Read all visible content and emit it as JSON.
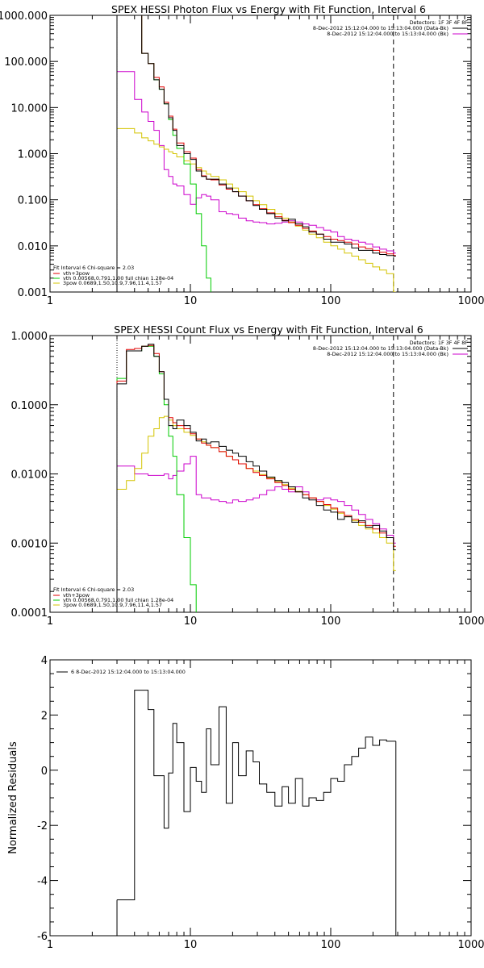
{
  "chart_data": [
    {
      "type": "line",
      "title": "SPEX HESSI Photon Flux vs Energy with Fit Function, Interval 6",
      "xlabel": "",
      "ylabel": "",
      "xscale": "log",
      "yscale": "log",
      "xlim": [
        1,
        1000
      ],
      "ylim": [
        0.001,
        1000
      ],
      "xticks": [
        1,
        10,
        100,
        1000
      ],
      "xtick_labels": [
        "1",
        "10",
        "100",
        "1000"
      ],
      "yticks": [
        0.001,
        0.01,
        0.1,
        1,
        10,
        100,
        1000
      ],
      "ytick_labels": [
        "0.001",
        "0.010",
        "0.100",
        "1.000",
        "10.000",
        "100.000",
        "1000.000"
      ],
      "grid": false,
      "vlines": [
        {
          "x": 3,
          "style": "dotted",
          "color": "#000000"
        },
        {
          "x": 280,
          "style": "dashed",
          "color": "#000000"
        }
      ],
      "legend_top": {
        "position": "top-right",
        "heading": "Detectors: 1F 3F 4F 8F",
        "entries": [
          {
            "text": "8-Dec-2012 15:12:04.000 to 15:13:04.000 (Data-Bk)",
            "color": "#000000"
          },
          {
            "text": "8-Dec-2012 15:12:04.000 to 15:13:04.000 (Bk)",
            "color": "#cc00cc"
          }
        ]
      },
      "legend_bottom": {
        "position": "bottom-left",
        "heading": "Fit Interval 6   Chi-square = 2.03",
        "entries": [
          {
            "text": "vth+3pow",
            "color": "#e00000"
          },
          {
            "text": "vth 0.00568,0.791,1.00  full chian 1.28e-04",
            "color": "#00cc00"
          },
          {
            "text": "3pow 0.0689,1.50,10.9,7.96,11.4,1.57",
            "color": "#d4c400"
          }
        ]
      },
      "x": [
        3.0,
        3.5,
        4.0,
        4.5,
        5.0,
        5.5,
        6.0,
        6.5,
        7.0,
        7.5,
        8.0,
        9.0,
        10.0,
        11.0,
        12.0,
        13.0,
        14.0,
        16.0,
        18.0,
        20.0,
        22.0,
        25.0,
        28.0,
        31.0,
        35.0,
        40.0,
        45.0,
        50.0,
        56.0,
        63.0,
        70.0,
        79.0,
        89.0,
        100.0,
        112.0,
        125.0,
        141.0,
        158.0,
        177.0,
        199.0,
        223.0,
        250.0,
        280.0
      ],
      "series": [
        {
          "color": "#000000",
          "values": [
            1000,
            1000,
            1000,
            150,
            90,
            40,
            25,
            12,
            6,
            3.2,
            1.5,
            1.0,
            0.75,
            0.42,
            0.32,
            0.28,
            0.28,
            0.22,
            0.18,
            0.15,
            0.12,
            0.095,
            0.075,
            0.062,
            0.05,
            0.04,
            0.035,
            0.038,
            0.03,
            0.026,
            0.02,
            0.018,
            0.014,
            0.012,
            0.012,
            0.011,
            0.009,
            0.008,
            0.008,
            0.007,
            0.0065,
            0.0062,
            0.006
          ]
        },
        {
          "color": "#e00000",
          "values": [
            1000,
            1000,
            1000,
            150,
            90,
            45,
            28,
            13,
            6.5,
            3.4,
            1.7,
            1.1,
            0.8,
            0.45,
            0.33,
            0.28,
            0.27,
            0.21,
            0.17,
            0.15,
            0.12,
            0.095,
            0.078,
            0.064,
            0.052,
            0.043,
            0.036,
            0.032,
            0.028,
            0.024,
            0.021,
            0.018,
            0.016,
            0.014,
            0.013,
            0.012,
            0.011,
            0.0095,
            0.0087,
            0.008,
            0.0073,
            0.0067,
            0.0062
          ]
        },
        {
          "color": "#00cc00",
          "values": [
            1000,
            1000,
            1000,
            150,
            90,
            40,
            25,
            12,
            5.5,
            2.5,
            1.3,
            0.6,
            0.22,
            0.05,
            0.01,
            0.002,
            0.0007,
            null,
            null,
            null,
            null,
            null,
            null,
            null,
            null,
            null,
            null,
            null,
            null,
            null,
            null,
            null,
            null,
            null,
            null,
            null,
            null,
            null,
            null,
            null,
            null,
            null,
            null
          ]
        },
        {
          "color": "#d4c400",
          "values": [
            3.5,
            3.5,
            2.8,
            2.2,
            1.9,
            1.6,
            1.4,
            1.25,
            1.1,
            1.0,
            0.85,
            0.7,
            0.6,
            0.5,
            0.42,
            0.36,
            0.32,
            0.27,
            0.22,
            0.18,
            0.15,
            0.12,
            0.095,
            0.078,
            0.062,
            0.05,
            0.04,
            0.033,
            0.027,
            0.022,
            0.018,
            0.015,
            0.012,
            0.01,
            0.0085,
            0.007,
            0.006,
            0.005,
            0.0042,
            0.0035,
            0.003,
            0.0025,
            0.001
          ]
        },
        {
          "color": "#cc00cc",
          "values": [
            60,
            60,
            15,
            8,
            5,
            3.2,
            1.5,
            0.45,
            0.32,
            0.22,
            0.2,
            0.13,
            0.08,
            0.11,
            0.13,
            0.12,
            0.1,
            0.055,
            0.05,
            0.048,
            0.04,
            0.035,
            0.033,
            0.032,
            0.03,
            0.031,
            0.033,
            0.035,
            0.033,
            0.03,
            0.028,
            0.025,
            0.022,
            0.02,
            0.016,
            0.014,
            0.013,
            0.012,
            0.011,
            0.0095,
            0.0085,
            0.0078,
            0.007
          ]
        }
      ]
    },
    {
      "type": "line",
      "title": "SPEX HESSI Count Flux vs Energy with Fit Function, Interval 6",
      "xlabel": "",
      "ylabel": "",
      "xscale": "log",
      "yscale": "log",
      "xlim": [
        1,
        1000
      ],
      "ylim": [
        0.0001,
        1
      ],
      "xticks": [
        1,
        10,
        100,
        1000
      ],
      "xtick_labels": [
        "1",
        "10",
        "100",
        "1000"
      ],
      "yticks": [
        0.0001,
        0.001,
        0.01,
        0.1,
        1
      ],
      "ytick_labels": [
        "0.0001",
        "0.0010",
        "0.0100",
        "0.1000",
        "1.0000"
      ],
      "grid": false,
      "vlines": [
        {
          "x": 3,
          "style": "dotted",
          "color": "#000000"
        },
        {
          "x": 280,
          "style": "dashed",
          "color": "#000000"
        }
      ],
      "legend_top": {
        "position": "top-right",
        "heading": "Detectors: 1F 3F 4F 8F",
        "entries": [
          {
            "text": "8-Dec-2012 15:12:04.000 to 15:13:04.000 (Data-Bk)",
            "color": "#000000"
          },
          {
            "text": "8-Dec-2012 15:12:04.000 to 15:13:04.000 (Bk)",
            "color": "#cc00cc"
          }
        ]
      },
      "legend_bottom": {
        "position": "bottom-left",
        "heading": "Fit Interval 6   Chi-square = 2.03",
        "entries": [
          {
            "text": "vth+3pow",
            "color": "#e00000"
          },
          {
            "text": "vth 0.00568,0.791,1.00  full chian 1.28e-04",
            "color": "#00cc00"
          },
          {
            "text": "3pow 0.0689,1.50,10.9,7.96,11.4,1.57",
            "color": "#d4c400"
          }
        ]
      },
      "x": [
        3.0,
        3.5,
        4.0,
        4.5,
        5.0,
        5.5,
        6.0,
        6.5,
        7.0,
        7.5,
        8.0,
        9.0,
        10.0,
        11.0,
        12.0,
        13.0,
        14.0,
        16.0,
        18.0,
        20.0,
        22.0,
        25.0,
        28.0,
        31.0,
        35.0,
        40.0,
        45.0,
        50.0,
        56.0,
        63.0,
        70.0,
        79.0,
        89.0,
        100.0,
        112.0,
        125.0,
        141.0,
        158.0,
        177.0,
        199.0,
        223.0,
        250.0,
        280.0
      ],
      "series": [
        {
          "color": "#000000",
          "values": [
            0.2,
            0.6,
            0.6,
            0.7,
            0.75,
            0.5,
            0.3,
            0.12,
            0.05,
            0.045,
            0.06,
            0.05,
            0.04,
            0.03,
            0.032,
            0.028,
            0.029,
            0.025,
            0.022,
            0.02,
            0.018,
            0.015,
            0.013,
            0.011,
            0.009,
            0.008,
            0.0075,
            0.0065,
            0.0055,
            0.0045,
            0.0042,
            0.0035,
            0.003,
            0.0028,
            0.0022,
            0.0024,
            0.002,
            0.0021,
            0.0017,
            0.0018,
            0.0015,
            0.0012,
            0.0008
          ]
        },
        {
          "color": "#e00000",
          "values": [
            0.22,
            0.63,
            0.65,
            0.7,
            0.72,
            0.55,
            0.3,
            0.12,
            0.065,
            0.055,
            0.05,
            0.045,
            0.038,
            0.032,
            0.028,
            0.026,
            0.024,
            0.021,
            0.018,
            0.016,
            0.014,
            0.012,
            0.0105,
            0.0095,
            0.0085,
            0.0075,
            0.0068,
            0.006,
            0.0055,
            0.005,
            0.0045,
            0.004,
            0.0036,
            0.0032,
            0.0028,
            0.0025,
            0.0022,
            0.002,
            0.0018,
            0.0016,
            0.0014,
            0.0012,
            0.0009
          ]
        },
        {
          "color": "#00cc00",
          "values": [
            0.24,
            0.6,
            0.6,
            0.7,
            0.7,
            0.5,
            0.28,
            0.1,
            0.035,
            0.018,
            0.005,
            0.0012,
            0.00025,
            5e-05,
            null,
            null,
            null,
            null,
            null,
            null,
            null,
            null,
            null,
            null,
            null,
            null,
            null,
            null,
            null,
            null,
            null,
            null,
            null,
            null,
            null,
            null,
            null,
            null,
            null,
            null,
            null,
            null,
            null
          ]
        },
        {
          "color": "#d4c400",
          "values": [
            0.006,
            0.008,
            0.012,
            0.02,
            0.035,
            0.045,
            0.065,
            0.068,
            0.06,
            0.05,
            0.045,
            0.04,
            0.036,
            0.032,
            0.029,
            0.026,
            0.024,
            0.021,
            0.018,
            0.016,
            0.014,
            0.012,
            0.011,
            0.0098,
            0.0088,
            0.0078,
            0.007,
            0.0062,
            0.0056,
            0.005,
            0.0045,
            0.004,
            0.0035,
            0.0031,
            0.0027,
            0.0024,
            0.0021,
            0.0018,
            0.0016,
            0.0014,
            0.0012,
            0.001,
            0.0004
          ]
        },
        {
          "color": "#cc00cc",
          "values": [
            0.013,
            0.013,
            0.01,
            0.01,
            0.0095,
            0.0095,
            0.0095,
            0.01,
            0.0085,
            0.0095,
            0.011,
            0.014,
            0.018,
            0.005,
            0.0045,
            0.0045,
            0.0042,
            0.004,
            0.0038,
            0.0042,
            0.004,
            0.0042,
            0.0045,
            0.005,
            0.0058,
            0.0065,
            0.006,
            0.0055,
            0.0065,
            0.0055,
            0.0045,
            0.0042,
            0.0045,
            0.0042,
            0.004,
            0.0035,
            0.003,
            0.0026,
            0.0022,
            0.0019,
            0.0016,
            0.0013,
            0.001
          ]
        }
      ]
    },
    {
      "type": "line",
      "title": "",
      "xlabel": "",
      "ylabel": "Normalized Residuals",
      "xscale": "log",
      "yscale": "linear",
      "xlim": [
        1,
        1000
      ],
      "ylim": [
        -6,
        4
      ],
      "xticks": [
        1,
        10,
        100,
        1000
      ],
      "xtick_labels": [
        "1",
        "10",
        "100",
        "1000"
      ],
      "yticks": [
        -6,
        -4,
        -2,
        0,
        2,
        4
      ],
      "ytick_labels": [
        "-6",
        "-4",
        "-2",
        "0",
        "2",
        "4"
      ],
      "grid": false,
      "legend_top": {
        "position": "top-left",
        "heading": "",
        "entries": [
          {
            "text": "6  8-Dec-2012 15:12:04.000 to 15:13:04.000",
            "color": "#000000"
          }
        ]
      },
      "x": [
        3.0,
        3.5,
        4.0,
        4.5,
        5.0,
        5.5,
        6.0,
        6.5,
        7.0,
        7.5,
        8.0,
        9.0,
        10.0,
        11.0,
        12.0,
        13.0,
        14.0,
        16.0,
        18.0,
        20.0,
        22.0,
        25.0,
        28.0,
        31.0,
        35.0,
        40.0,
        45.0,
        50.0,
        56.0,
        63.0,
        70.0,
        79.0,
        89.0,
        100.0,
        112.0,
        125.0,
        141.0,
        158.0,
        177.0,
        199.0,
        223.0,
        250.0,
        280.0
      ],
      "series": [
        {
          "color": "#000000",
          "values": [
            -4.7,
            -4.7,
            2.9,
            2.9,
            2.2,
            -0.2,
            -0.2,
            -2.1,
            -0.1,
            1.7,
            1.0,
            -1.5,
            0.1,
            -0.4,
            -0.8,
            1.5,
            0.2,
            2.3,
            -1.2,
            1.0,
            -0.2,
            0.7,
            0.3,
            -0.5,
            -0.8,
            -1.3,
            -0.6,
            -1.2,
            -0.3,
            -1.3,
            -1.0,
            -1.1,
            -0.8,
            -0.3,
            -0.4,
            0.2,
            0.5,
            0.8,
            1.2,
            0.9,
            1.1,
            1.05,
            1.05
          ]
        }
      ]
    }
  ]
}
